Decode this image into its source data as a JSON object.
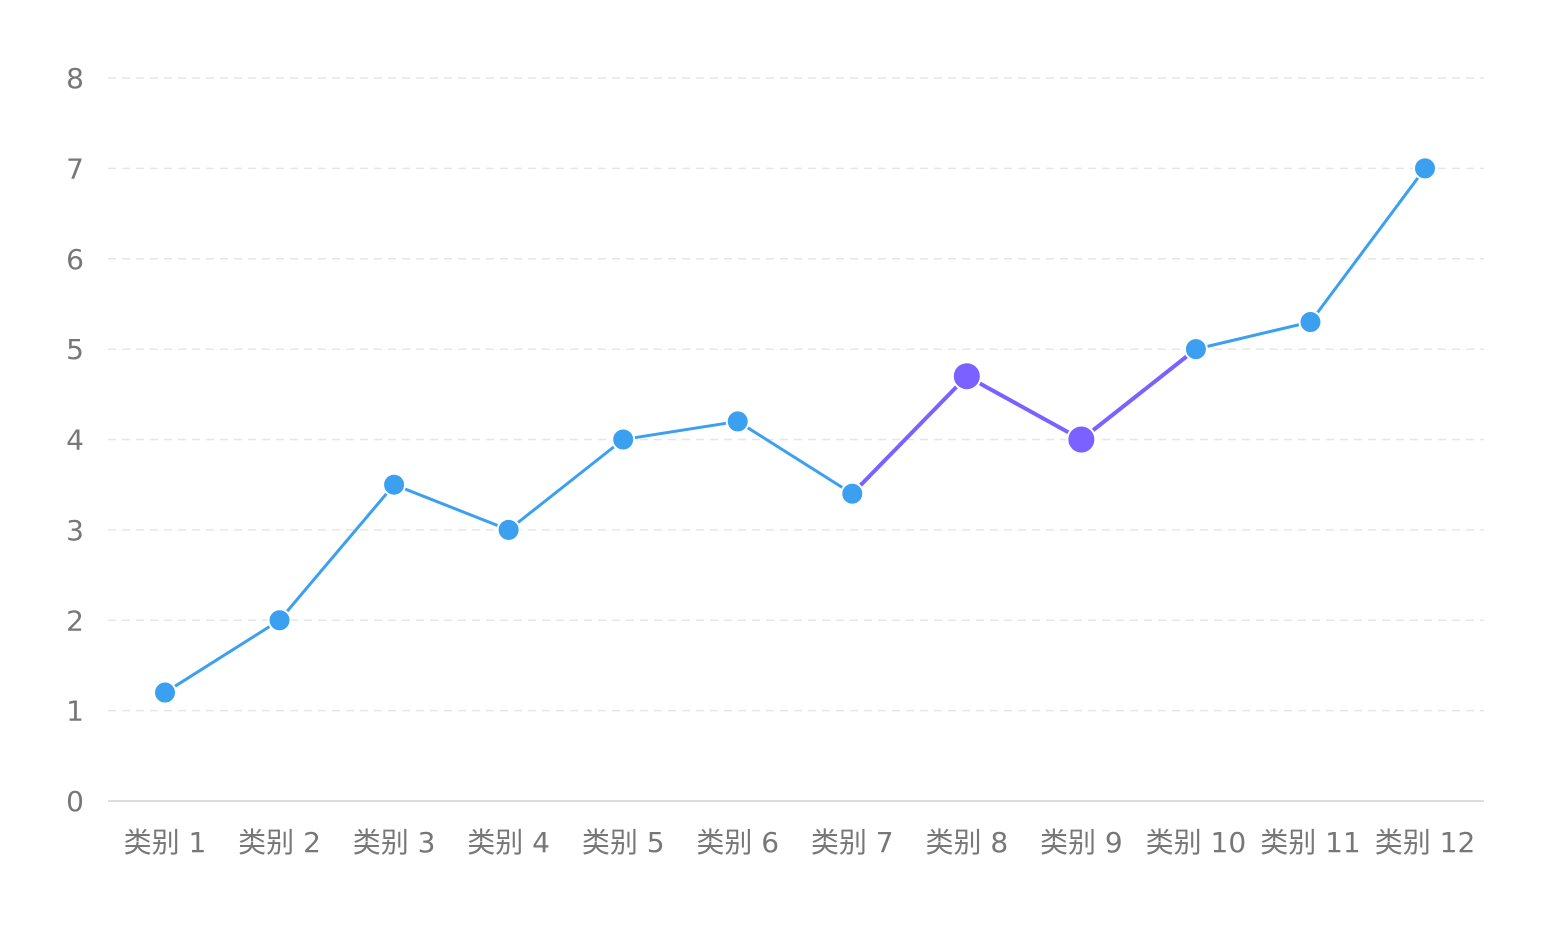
{
  "chart_data": {
    "type": "line",
    "title": "",
    "xlabel": "",
    "ylabel": "",
    "ylim": [
      0,
      8
    ],
    "yticks": [
      "0",
      "1",
      "2",
      "3",
      "4",
      "5",
      "6",
      "7",
      "8"
    ],
    "grid": true,
    "legend": "none",
    "categories": [
      "类别 1",
      "类别 2",
      "类别 3",
      "类别 4",
      "类别 5",
      "类别 6",
      "类别 7",
      "类别 8",
      "类别 9",
      "类别 10",
      "类别 11",
      "类别 12"
    ],
    "series": [
      {
        "values": [
          1.2,
          2,
          3.5,
          3,
          4,
          4.2,
          3.4,
          4.7,
          4,
          5,
          5.3,
          7
        ],
        "color": "#3ba0f0",
        "highlight_color": "#7b61ff",
        "highlight_points": [
          7,
          8
        ],
        "highlight_segments": [
          [
            6,
            7
          ],
          [
            7,
            8
          ],
          [
            8,
            9
          ]
        ]
      }
    ]
  }
}
